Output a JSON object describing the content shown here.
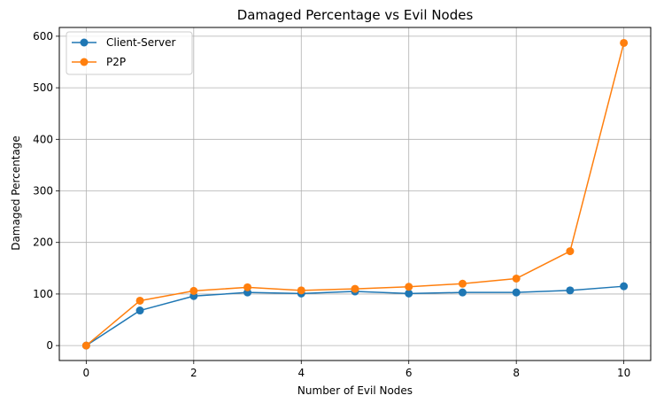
{
  "chart_data": {
    "type": "line",
    "title": "Damaged Percentage vs Evil Nodes",
    "xlabel": "Number of Evil Nodes",
    "ylabel": "Damaged Percentage",
    "x": [
      0,
      1,
      2,
      3,
      4,
      5,
      6,
      7,
      8,
      9,
      10
    ],
    "xlim": [
      -0.5,
      10.5
    ],
    "ylim": [
      -29,
      617
    ],
    "xticks": [
      "0",
      "2",
      "4",
      "6",
      "8",
      "10"
    ],
    "yticks": [
      "0",
      "100",
      "200",
      "300",
      "400",
      "500",
      "600"
    ],
    "grid": true,
    "legend_position": "top-left",
    "series": [
      {
        "name": "Client-Server",
        "color": "#1f77b4",
        "values": [
          0,
          68,
          96,
          103,
          101,
          105,
          101,
          103,
          103,
          107,
          115
        ]
      },
      {
        "name": "P2P",
        "color": "#ff7f0e",
        "values": [
          0,
          87,
          106,
          113,
          107,
          110,
          114,
          120,
          130,
          183,
          587
        ]
      }
    ]
  }
}
